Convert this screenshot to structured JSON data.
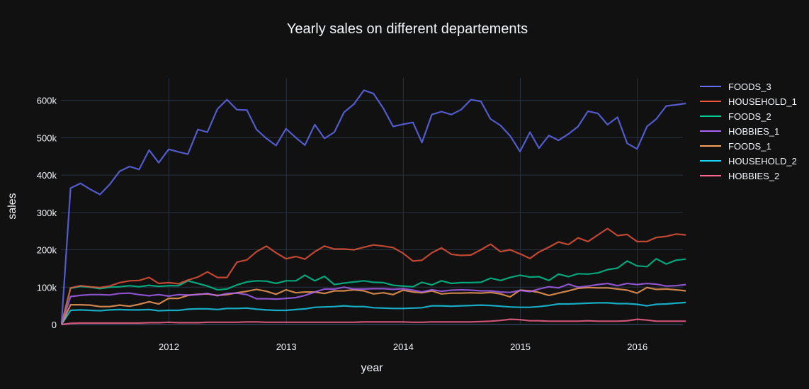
{
  "chart_data": {
    "type": "line",
    "title": "Yearly sales on different departements",
    "xlabel": "year",
    "ylabel": "sales",
    "xlim": [
      "2011-01-29",
      "2016-05-22"
    ],
    "ylim": [
      0,
      660000
    ],
    "x_ticks": [
      "2012",
      "2013",
      "2014",
      "2015",
      "2016"
    ],
    "y_ticks": [
      {
        "value": 0,
        "label": "0"
      },
      {
        "value": 100000,
        "label": "100k"
      },
      {
        "value": 200000,
        "label": "200k"
      },
      {
        "value": 300000,
        "label": "300k"
      },
      {
        "value": 400000,
        "label": "400k"
      },
      {
        "value": 500000,
        "label": "500k"
      },
      {
        "value": 600000,
        "label": "600k"
      }
    ],
    "grid": true,
    "legend_position": "right",
    "x": [
      "2011-01-31",
      "2011-02-28",
      "2011-03-31",
      "2011-04-30",
      "2011-05-31",
      "2011-06-30",
      "2011-07-31",
      "2011-08-31",
      "2011-09-30",
      "2011-10-31",
      "2011-11-30",
      "2011-12-31",
      "2012-01-31",
      "2012-02-29",
      "2012-03-31",
      "2012-04-30",
      "2012-05-31",
      "2012-06-30",
      "2012-07-31",
      "2012-08-31",
      "2012-09-30",
      "2012-10-31",
      "2012-11-30",
      "2012-12-31",
      "2013-01-31",
      "2013-02-28",
      "2013-03-31",
      "2013-04-30",
      "2013-05-31",
      "2013-06-30",
      "2013-07-31",
      "2013-08-31",
      "2013-09-30",
      "2013-10-31",
      "2013-11-30",
      "2013-12-31",
      "2014-01-31",
      "2014-02-28",
      "2014-03-31",
      "2014-04-30",
      "2014-05-31",
      "2014-06-30",
      "2014-07-31",
      "2014-08-31",
      "2014-09-30",
      "2014-10-31",
      "2014-11-30",
      "2014-12-31",
      "2015-01-31",
      "2015-02-28",
      "2015-03-31",
      "2015-04-30",
      "2015-05-31",
      "2015-06-30",
      "2015-07-31",
      "2015-08-31",
      "2015-09-30",
      "2015-10-31",
      "2015-11-30",
      "2015-12-31",
      "2016-01-31",
      "2016-02-29",
      "2016-03-31",
      "2016-04-30",
      "2016-05-31"
    ],
    "series": [
      {
        "name": "FOODS_3",
        "color": "#636efa",
        "values": [
          5000,
          365000,
          378000,
          362000,
          348000,
          375000,
          410000,
          423000,
          415000,
          467000,
          433000,
          469000,
          462000,
          456000,
          522000,
          515000,
          577000,
          602000,
          575000,
          574000,
          522000,
          498000,
          479000,
          524000,
          500000,
          480000,
          535000,
          498000,
          515000,
          568000,
          590000,
          627000,
          618000,
          578000,
          530000,
          536000,
          541000,
          487000,
          562000,
          570000,
          562000,
          575000,
          602000,
          597000,
          550000,
          533000,
          505000,
          463000,
          515000,
          472000,
          506000,
          493000,
          510000,
          530000,
          571000,
          565000,
          535000,
          555000,
          485000,
          470000,
          530000,
          550000,
          585000,
          588000,
          592000
        ]
      },
      {
        "name": "HOUSEHOLD_1",
        "color": "#EF553B",
        "values": [
          2000,
          98000,
          104000,
          101000,
          99000,
          103000,
          112000,
          117000,
          118000,
          126000,
          110000,
          112000,
          109000,
          119000,
          127000,
          141000,
          126000,
          126000,
          167000,
          173000,
          195000,
          210000,
          192000,
          176000,
          182000,
          175000,
          195000,
          210000,
          202000,
          202000,
          200000,
          207000,
          213000,
          210000,
          206000,
          191000,
          170000,
          172000,
          192000,
          205000,
          188000,
          185000,
          186000,
          200000,
          215000,
          195000,
          200000,
          189000,
          177000,
          194000,
          207000,
          221000,
          214000,
          232000,
          222000,
          240000,
          257000,
          238000,
          241000,
          222000,
          222000,
          233000,
          236000,
          242000,
          240000
        ]
      },
      {
        "name": "FOODS_2",
        "color": "#00cc96",
        "values": [
          2000,
          97000,
          102000,
          100000,
          96000,
          100000,
          101000,
          104000,
          101000,
          105000,
          102000,
          104000,
          104000,
          117000,
          110000,
          103000,
          93000,
          95000,
          106000,
          114000,
          117000,
          116000,
          110000,
          117000,
          117000,
          132000,
          117000,
          129000,
          107000,
          111000,
          114000,
          117000,
          113000,
          112000,
          105000,
          103000,
          101000,
          113000,
          106000,
          117000,
          110000,
          112000,
          112000,
          113000,
          124000,
          118000,
          126000,
          132000,
          127000,
          128000,
          118000,
          135000,
          128000,
          136000,
          135000,
          138000,
          147000,
          151000,
          170000,
          157000,
          155000,
          176000,
          162000,
          172000,
          175000
        ]
      },
      {
        "name": "HOBBIES_1",
        "color": "#ab63fa",
        "values": [
          1000,
          75000,
          78000,
          80000,
          80000,
          79000,
          83000,
          84000,
          80000,
          77000,
          80000,
          76000,
          80000,
          79000,
          80000,
          83000,
          77000,
          83000,
          84000,
          80000,
          69000,
          69000,
          68000,
          70000,
          72000,
          78000,
          87000,
          95000,
          95000,
          100000,
          95000,
          95000,
          96000,
          96000,
          94000,
          96000,
          92000,
          87000,
          93000,
          89000,
          92000,
          93000,
          92000,
          90000,
          90000,
          87000,
          86000,
          91000,
          88000,
          95000,
          101000,
          98000,
          108000,
          100000,
          103000,
          107000,
          110000,
          104000,
          110000,
          107000,
          110000,
          108000,
          103000,
          104000,
          107000
        ]
      },
      {
        "name": "FOODS_1",
        "color": "#FFA15A",
        "values": [
          1000,
          53000,
          53000,
          52000,
          48000,
          48000,
          52000,
          49000,
          54000,
          61000,
          55000,
          70000,
          70000,
          78000,
          81000,
          82000,
          78000,
          80000,
          85000,
          89000,
          94000,
          89000,
          81000,
          93000,
          85000,
          87000,
          87000,
          83000,
          90000,
          90000,
          93000,
          90000,
          82000,
          85000,
          80000,
          92000,
          87000,
          85000,
          90000,
          82000,
          84000,
          84000,
          85000,
          84000,
          86000,
          82000,
          74000,
          92000,
          90000,
          86000,
          78000,
          84000,
          90000,
          97000,
          99000,
          98000,
          98000,
          95000,
          92000,
          84000,
          99000,
          94000,
          95000,
          93000,
          90000
        ]
      },
      {
        "name": "HOUSEHOLD_2",
        "color": "#19d3f3",
        "values": [
          500,
          38000,
          39000,
          38000,
          37000,
          39000,
          40000,
          39000,
          39000,
          40000,
          37000,
          38000,
          38000,
          41000,
          42000,
          42000,
          40000,
          43000,
          43000,
          44000,
          41000,
          39000,
          38000,
          38000,
          40000,
          42000,
          46000,
          47000,
          48000,
          50000,
          48000,
          48000,
          45000,
          44000,
          43000,
          43000,
          44000,
          45000,
          50000,
          50000,
          49000,
          50000,
          51000,
          52000,
          51000,
          49000,
          47000,
          46000,
          46000,
          48000,
          51000,
          55000,
          55000,
          56000,
          57000,
          58000,
          58000,
          56000,
          56000,
          54000,
          50000,
          54000,
          55000,
          57000,
          59000
        ]
      },
      {
        "name": "HOBBIES_2",
        "color": "#FF6692",
        "values": [
          0,
          3000,
          4000,
          4000,
          4000,
          4000,
          4000,
          4000,
          4000,
          5000,
          5000,
          6000,
          5000,
          5000,
          5000,
          6000,
          6000,
          6000,
          6000,
          7000,
          7000,
          6000,
          6000,
          6000,
          6000,
          6000,
          6000,
          6000,
          6000,
          6000,
          6000,
          7000,
          7000,
          7000,
          7000,
          7000,
          6000,
          6000,
          7000,
          7000,
          7000,
          7000,
          7000,
          8000,
          9000,
          11000,
          14000,
          13000,
          10000,
          10000,
          9000,
          9000,
          9000,
          9000,
          10000,
          9000,
          9000,
          9000,
          10000,
          14000,
          12000,
          9000,
          9000,
          9000,
          9000
        ]
      }
    ]
  }
}
